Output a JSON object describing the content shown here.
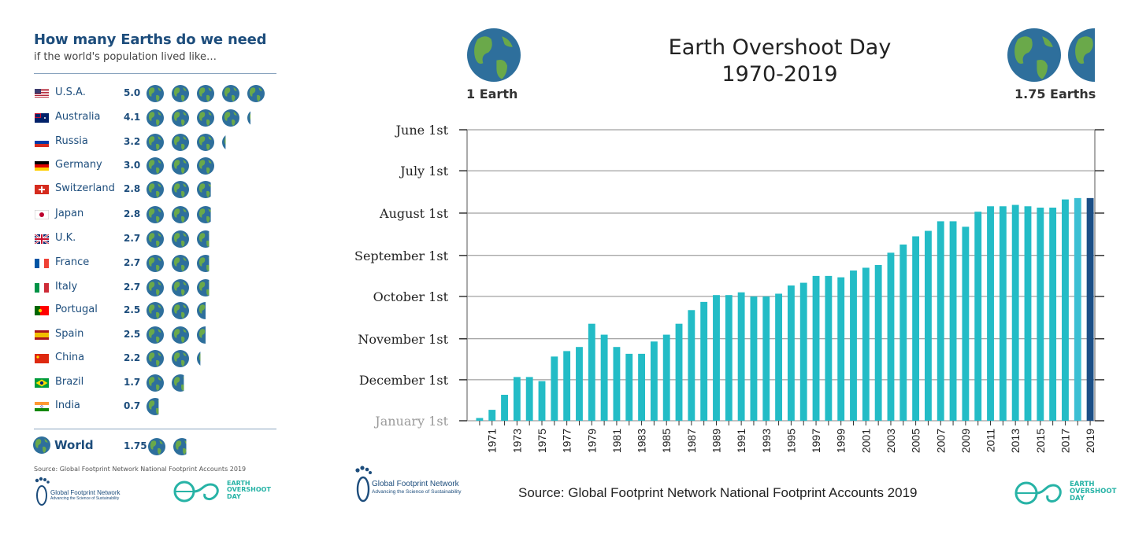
{
  "left_panel": {
    "title": "How many Earths do we need",
    "subtitle": "if the world's population lived like…",
    "countries": [
      {
        "name": "U.S.A.",
        "value": "5.0",
        "earths": 5.0,
        "flag": "us"
      },
      {
        "name": "Australia",
        "value": "4.1",
        "earths": 4.1,
        "flag": "au"
      },
      {
        "name": "Russia",
        "value": "3.2",
        "earths": 3.2,
        "flag": "ru"
      },
      {
        "name": "Germany",
        "value": "3.0",
        "earths": 3.0,
        "flag": "de"
      },
      {
        "name": "Switzerland",
        "value": "2.8",
        "earths": 2.8,
        "flag": "ch"
      },
      {
        "name": "Japan",
        "value": "2.8",
        "earths": 2.8,
        "flag": "jp"
      },
      {
        "name": "U.K.",
        "value": "2.7",
        "earths": 2.7,
        "flag": "uk"
      },
      {
        "name": "France",
        "value": "2.7",
        "earths": 2.7,
        "flag": "fr"
      },
      {
        "name": "Italy",
        "value": "2.7",
        "earths": 2.7,
        "flag": "it"
      },
      {
        "name": "Portugal",
        "value": "2.5",
        "earths": 2.5,
        "flag": "pt"
      },
      {
        "name": "Spain",
        "value": "2.5",
        "earths": 2.5,
        "flag": "es"
      },
      {
        "name": "China",
        "value": "2.2",
        "earths": 2.2,
        "flag": "cn"
      },
      {
        "name": "Brazil",
        "value": "1.7",
        "earths": 1.7,
        "flag": "br"
      },
      {
        "name": "India",
        "value": "0.7",
        "earths": 0.7,
        "flag": "in"
      }
    ],
    "world": {
      "name": "World",
      "value": "1.75",
      "earths": 1.75
    },
    "source": "Source: Global Footprint Network National Footprint Accounts 2019"
  },
  "logos": {
    "gfn_name": "Global Footprint Network",
    "gfn_tagline": "Advancing the Science of Sustainability",
    "eod_line1": "EARTH",
    "eod_line2": "OVERSHOOT",
    "eod_line3": "DAY"
  },
  "right_panel": {
    "one_earth_label": "1 Earth",
    "many_earths_label": "1.75 Earths",
    "source": "Source: Global Footprint Network National Footprint Accounts 2019"
  },
  "colors": {
    "bar": "#23bcc6",
    "bar_2018": "#3bbfd3",
    "bar_2019": "#1b4f86",
    "title_blue": "#1d4d7c",
    "teal": "#27b3a6",
    "globe_ocean": "#2e6f9c",
    "globe_land": "#6aa94a"
  },
  "chart_data": {
    "type": "bar",
    "title": "Earth Overshoot Day",
    "subtitle": "1970-2019",
    "y_axis_labels": [
      "June 1st",
      "July 1st",
      "August 1st",
      "September 1st",
      "October 1st",
      "November 1st",
      "December 1st",
      "January 1st"
    ],
    "y_axis_note": "Day of year; earlier date plotted higher",
    "ylim_day_of_year": [
      152,
      365
    ],
    "x": [
      1970,
      1971,
      1972,
      1973,
      1974,
      1975,
      1976,
      1977,
      1978,
      1979,
      1980,
      1981,
      1982,
      1983,
      1984,
      1985,
      1986,
      1987,
      1988,
      1989,
      1990,
      1991,
      1992,
      1993,
      1994,
      1995,
      1996,
      1997,
      1998,
      1999,
      2000,
      2001,
      2002,
      2003,
      2004,
      2005,
      2006,
      2007,
      2008,
      2009,
      2010,
      2011,
      2012,
      2013,
      2014,
      2015,
      2016,
      2017,
      2018,
      2019
    ],
    "x_tick_labels": [
      "1971",
      "1973",
      "1975",
      "1977",
      "1979",
      "1981",
      "1983",
      "1985",
      "1987",
      "1989",
      "1991",
      "1993",
      "1995",
      "1997",
      "1999",
      "2001",
      "2003",
      "2005",
      "2007",
      "2009",
      "2011",
      "2013",
      "2015",
      "2017",
      "2019"
    ],
    "values_day_of_year": [
      363,
      357,
      346,
      333,
      333,
      336,
      318,
      314,
      311,
      294,
      302,
      311,
      316,
      316,
      307,
      302,
      294,
      284,
      278,
      273,
      273,
      271,
      274,
      274,
      272,
      266,
      264,
      259,
      259,
      260,
      255,
      253,
      251,
      242,
      236,
      230,
      226,
      219,
      219,
      223,
      212,
      208,
      208,
      207,
      208,
      209,
      209,
      203,
      202,
      202
    ],
    "highlight": {
      "2019": "dark",
      "2018": "light"
    }
  }
}
